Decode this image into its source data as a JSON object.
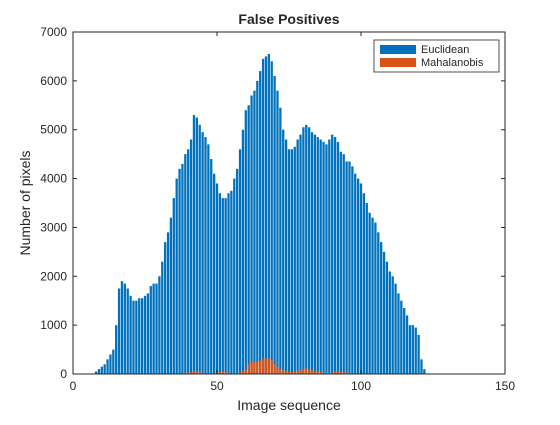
{
  "chart_data": {
    "type": "bar",
    "title": "False Positives",
    "xlabel": "Image sequence",
    "ylabel": "Number of pixels",
    "xlim": [
      0,
      150
    ],
    "ylim": [
      0,
      7000
    ],
    "xticks": [
      0,
      50,
      100,
      150
    ],
    "yticks": [
      0,
      1000,
      2000,
      3000,
      4000,
      5000,
      6000,
      7000
    ],
    "grid": false,
    "legend_position": "top-right",
    "colors": {
      "Euclidean": "#0072BD",
      "Mahalanobis": "#D95319"
    },
    "x_start": 1,
    "series": [
      {
        "name": "Euclidean",
        "values": [
          0,
          0,
          0,
          0,
          0,
          0,
          0,
          50,
          100,
          150,
          200,
          300,
          400,
          500,
          1000,
          1750,
          1900,
          1850,
          1750,
          1600,
          1500,
          1500,
          1550,
          1550,
          1600,
          1650,
          1800,
          1850,
          1850,
          2000,
          2300,
          2700,
          2900,
          3200,
          3600,
          4000,
          4200,
          4300,
          4500,
          4600,
          4800,
          5300,
          5250,
          5100,
          4950,
          4850,
          4700,
          4400,
          4100,
          3900,
          3700,
          3600,
          3600,
          3700,
          3750,
          4000,
          4200,
          4600,
          5000,
          5400,
          5500,
          5700,
          5800,
          6000,
          6200,
          6450,
          6500,
          6550,
          6400,
          6100,
          5800,
          5450,
          5000,
          4800,
          4600,
          4600,
          4650,
          4800,
          4900,
          5050,
          5100,
          5050,
          4950,
          4900,
          4850,
          4800,
          4750,
          4700,
          4800,
          4900,
          4850,
          4750,
          4550,
          4500,
          4350,
          4350,
          4250,
          4100,
          4000,
          3900,
          3700,
          3500,
          3300,
          3200,
          3100,
          2900,
          2700,
          2500,
          2300,
          2100,
          2000,
          1850,
          1650,
          1500,
          1350,
          1200,
          1000,
          1000,
          950,
          800,
          300,
          100,
          0,
          0,
          0,
          0,
          0,
          0,
          0,
          0
        ]
      },
      {
        "name": "Mahalanobis",
        "values": [
          0,
          0,
          0,
          0,
          0,
          0,
          0,
          0,
          0,
          0,
          0,
          0,
          0,
          0,
          0,
          0,
          0,
          0,
          0,
          0,
          0,
          0,
          0,
          0,
          0,
          0,
          0,
          0,
          0,
          0,
          0,
          0,
          0,
          0,
          0,
          0,
          0,
          0,
          20,
          30,
          40,
          60,
          60,
          40,
          20,
          10,
          0,
          0,
          0,
          20,
          40,
          50,
          40,
          20,
          10,
          10,
          20,
          40,
          60,
          100,
          200,
          250,
          250,
          250,
          280,
          300,
          320,
          320,
          280,
          200,
          150,
          100,
          80,
          60,
          50,
          40,
          50,
          60,
          80,
          100,
          120,
          100,
          80,
          60,
          50,
          40,
          30,
          20,
          20,
          30,
          50,
          60,
          50,
          40,
          30,
          20,
          10,
          0,
          0,
          0,
          0,
          0,
          0,
          0,
          0,
          0,
          0,
          0,
          0,
          0,
          0,
          0,
          0,
          0,
          0,
          0,
          0,
          0,
          0,
          0,
          0,
          0,
          0,
          0,
          0,
          0,
          0,
          0,
          0,
          0
        ]
      }
    ]
  }
}
